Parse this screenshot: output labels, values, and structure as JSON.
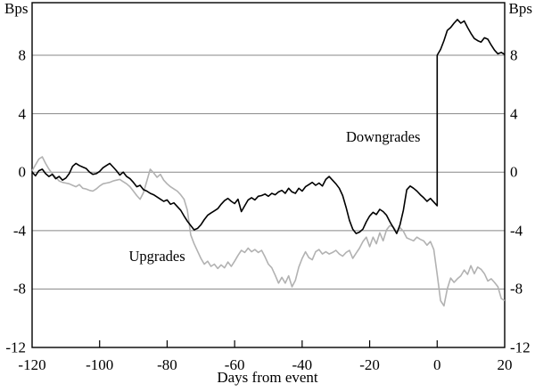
{
  "chart_data": {
    "type": "line",
    "title": "",
    "xlabel": "Days from event",
    "y_unit": "Bps",
    "xlim": [
      -120,
      20
    ],
    "ylim": [
      -12,
      11.6
    ],
    "x_ticks": [
      -120,
      -100,
      -80,
      -60,
      -40,
      -20,
      0,
      20
    ],
    "y_ticks": [
      8,
      4,
      0,
      -4,
      -8,
      -12
    ],
    "grid": "horizontal-gridlines, black outer frame, inward x ticks",
    "legend_position": "inline-annotations",
    "annotations": [
      {
        "text": "Downgrades",
        "x": -16,
        "y": 2.4
      },
      {
        "text": "Upgrades",
        "x": -83,
        "y": -5.8
      }
    ],
    "frame_color": "#000000",
    "gridline_color": "#878787",
    "series": [
      {
        "name": "Upgrades",
        "color": "#b2b2b2",
        "points": [
          [
            -120,
            0.1
          ],
          [
            -119,
            0.5
          ],
          [
            -118,
            0.9
          ],
          [
            -117,
            1.05
          ],
          [
            -116,
            0.6
          ],
          [
            -115,
            0.2
          ],
          [
            -114,
            -0.1
          ],
          [
            -113,
            -0.35
          ],
          [
            -112,
            -0.6
          ],
          [
            -111,
            -0.7
          ],
          [
            -110,
            -0.75
          ],
          [
            -109,
            -0.8
          ],
          [
            -108,
            -0.9
          ],
          [
            -107,
            -1.0
          ],
          [
            -106,
            -0.85
          ],
          [
            -105,
            -1.1
          ],
          [
            -104,
            -1.15
          ],
          [
            -103,
            -1.25
          ],
          [
            -102,
            -1.3
          ],
          [
            -101,
            -1.15
          ],
          [
            -100,
            -0.95
          ],
          [
            -99,
            -0.8
          ],
          [
            -98,
            -0.75
          ],
          [
            -97,
            -0.7
          ],
          [
            -96,
            -0.6
          ],
          [
            -95,
            -0.55
          ],
          [
            -94,
            -0.5
          ],
          [
            -93,
            -0.65
          ],
          [
            -92,
            -0.8
          ],
          [
            -91,
            -1.0
          ],
          [
            -90,
            -1.3
          ],
          [
            -89,
            -1.6
          ],
          [
            -88,
            -1.85
          ],
          [
            -87,
            -1.4
          ],
          [
            -86,
            -0.6
          ],
          [
            -85,
            0.2
          ],
          [
            -84,
            -0.05
          ],
          [
            -83,
            -0.35
          ],
          [
            -82,
            -0.15
          ],
          [
            -81,
            -0.55
          ],
          [
            -80,
            -0.8
          ],
          [
            -79,
            -1.0
          ],
          [
            -78,
            -1.15
          ],
          [
            -77,
            -1.3
          ],
          [
            -76,
            -1.55
          ],
          [
            -75,
            -1.85
          ],
          [
            -74,
            -2.6
          ],
          [
            -73,
            -4.3
          ],
          [
            -72,
            -4.9
          ],
          [
            -71,
            -5.4
          ],
          [
            -70,
            -5.9
          ],
          [
            -69,
            -6.3
          ],
          [
            -68,
            -6.1
          ],
          [
            -67,
            -6.45
          ],
          [
            -66,
            -6.3
          ],
          [
            -65,
            -6.6
          ],
          [
            -64,
            -6.35
          ],
          [
            -63,
            -6.55
          ],
          [
            -62,
            -6.15
          ],
          [
            -61,
            -6.45
          ],
          [
            -60,
            -6.1
          ],
          [
            -59,
            -5.7
          ],
          [
            -58,
            -5.35
          ],
          [
            -57,
            -5.5
          ],
          [
            -56,
            -5.2
          ],
          [
            -55,
            -5.45
          ],
          [
            -54,
            -5.3
          ],
          [
            -53,
            -5.5
          ],
          [
            -52,
            -5.35
          ],
          [
            -51,
            -5.8
          ],
          [
            -50,
            -6.3
          ],
          [
            -49,
            -6.55
          ],
          [
            -48,
            -7.05
          ],
          [
            -47,
            -7.6
          ],
          [
            -46,
            -7.2
          ],
          [
            -45,
            -7.6
          ],
          [
            -44,
            -7.1
          ],
          [
            -43,
            -7.85
          ],
          [
            -42,
            -7.4
          ],
          [
            -41,
            -6.5
          ],
          [
            -40,
            -5.9
          ],
          [
            -39,
            -5.45
          ],
          [
            -38,
            -5.85
          ],
          [
            -37,
            -6.0
          ],
          [
            -36,
            -5.45
          ],
          [
            -35,
            -5.3
          ],
          [
            -34,
            -5.6
          ],
          [
            -33,
            -5.45
          ],
          [
            -32,
            -5.6
          ],
          [
            -31,
            -5.5
          ],
          [
            -30,
            -5.35
          ],
          [
            -29,
            -5.6
          ],
          [
            -28,
            -5.75
          ],
          [
            -27,
            -5.5
          ],
          [
            -26,
            -5.35
          ],
          [
            -25,
            -5.9
          ],
          [
            -24,
            -5.55
          ],
          [
            -23,
            -5.2
          ],
          [
            -22,
            -4.75
          ],
          [
            -21,
            -4.45
          ],
          [
            -20,
            -5.1
          ],
          [
            -19,
            -4.45
          ],
          [
            -18,
            -4.9
          ],
          [
            -17,
            -4.15
          ],
          [
            -16,
            -4.7
          ],
          [
            -15,
            -3.95
          ],
          [
            -14,
            -3.65
          ],
          [
            -13,
            -3.75
          ],
          [
            -12,
            -4.1
          ],
          [
            -11,
            -3.8
          ],
          [
            -10,
            -4.05
          ],
          [
            -9,
            -4.5
          ],
          [
            -8,
            -4.6
          ],
          [
            -7,
            -4.7
          ],
          [
            -6,
            -4.45
          ],
          [
            -5,
            -4.6
          ],
          [
            -4,
            -4.7
          ],
          [
            -3,
            -5.0
          ],
          [
            -2,
            -4.75
          ],
          [
            -1,
            -5.3
          ],
          [
            0,
            -7.0
          ],
          [
            1,
            -8.8
          ],
          [
            2,
            -9.15
          ],
          [
            3,
            -8.0
          ],
          [
            4,
            -7.25
          ],
          [
            5,
            -7.55
          ],
          [
            6,
            -7.3
          ],
          [
            7,
            -7.1
          ],
          [
            8,
            -6.7
          ],
          [
            9,
            -7.0
          ],
          [
            10,
            -6.4
          ],
          [
            11,
            -6.95
          ],
          [
            12,
            -6.5
          ],
          [
            13,
            -6.65
          ],
          [
            14,
            -6.95
          ],
          [
            15,
            -7.45
          ],
          [
            16,
            -7.3
          ],
          [
            17,
            -7.55
          ],
          [
            18,
            -7.85
          ],
          [
            19,
            -8.65
          ],
          [
            20,
            -8.8
          ]
        ]
      },
      {
        "name": "Downgrades",
        "color": "#000000",
        "points": [
          [
            -120,
            0.0
          ],
          [
            -119,
            -0.25
          ],
          [
            -118,
            0.1
          ],
          [
            -117,
            0.2
          ],
          [
            -116,
            -0.1
          ],
          [
            -115,
            -0.3
          ],
          [
            -114,
            -0.15
          ],
          [
            -113,
            -0.45
          ],
          [
            -112,
            -0.3
          ],
          [
            -111,
            -0.55
          ],
          [
            -110,
            -0.4
          ],
          [
            -109,
            -0.1
          ],
          [
            -108,
            0.4
          ],
          [
            -107,
            0.6
          ],
          [
            -106,
            0.45
          ],
          [
            -105,
            0.35
          ],
          [
            -104,
            0.25
          ],
          [
            -103,
            0.0
          ],
          [
            -102,
            -0.15
          ],
          [
            -101,
            -0.1
          ],
          [
            -100,
            0.05
          ],
          [
            -99,
            0.3
          ],
          [
            -98,
            0.45
          ],
          [
            -97,
            0.6
          ],
          [
            -96,
            0.35
          ],
          [
            -95,
            0.1
          ],
          [
            -94,
            -0.2
          ],
          [
            -93,
            0.0
          ],
          [
            -92,
            -0.3
          ],
          [
            -91,
            -0.45
          ],
          [
            -90,
            -0.7
          ],
          [
            -89,
            -1.0
          ],
          [
            -88,
            -0.9
          ],
          [
            -87,
            -1.2
          ],
          [
            -86,
            -1.3
          ],
          [
            -85,
            -1.45
          ],
          [
            -84,
            -1.55
          ],
          [
            -83,
            -1.7
          ],
          [
            -82,
            -1.85
          ],
          [
            -81,
            -2.0
          ],
          [
            -80,
            -1.9
          ],
          [
            -79,
            -2.2
          ],
          [
            -78,
            -2.1
          ],
          [
            -77,
            -2.35
          ],
          [
            -76,
            -2.6
          ],
          [
            -75,
            -3.0
          ],
          [
            -74,
            -3.35
          ],
          [
            -73,
            -3.65
          ],
          [
            -72,
            -3.95
          ],
          [
            -71,
            -3.85
          ],
          [
            -70,
            -3.6
          ],
          [
            -69,
            -3.25
          ],
          [
            -68,
            -2.95
          ],
          [
            -67,
            -2.8
          ],
          [
            -66,
            -2.65
          ],
          [
            -65,
            -2.5
          ],
          [
            -64,
            -2.2
          ],
          [
            -63,
            -1.95
          ],
          [
            -62,
            -1.8
          ],
          [
            -61,
            -2.0
          ],
          [
            -60,
            -2.15
          ],
          [
            -59,
            -1.85
          ],
          [
            -58,
            -2.7
          ],
          [
            -57,
            -2.3
          ],
          [
            -56,
            -1.9
          ],
          [
            -55,
            -1.75
          ],
          [
            -54,
            -1.9
          ],
          [
            -53,
            -1.65
          ],
          [
            -52,
            -1.6
          ],
          [
            -51,
            -1.5
          ],
          [
            -50,
            -1.65
          ],
          [
            -49,
            -1.45
          ],
          [
            -48,
            -1.55
          ],
          [
            -47,
            -1.35
          ],
          [
            -46,
            -1.25
          ],
          [
            -45,
            -1.45
          ],
          [
            -44,
            -1.1
          ],
          [
            -43,
            -1.35
          ],
          [
            -42,
            -1.45
          ],
          [
            -41,
            -1.1
          ],
          [
            -40,
            -1.3
          ],
          [
            -39,
            -1.0
          ],
          [
            -38,
            -0.85
          ],
          [
            -37,
            -0.7
          ],
          [
            -36,
            -0.9
          ],
          [
            -35,
            -0.75
          ],
          [
            -34,
            -0.95
          ],
          [
            -33,
            -0.5
          ],
          [
            -32,
            -0.3
          ],
          [
            -31,
            -0.55
          ],
          [
            -30,
            -0.8
          ],
          [
            -29,
            -1.1
          ],
          [
            -28,
            -1.6
          ],
          [
            -27,
            -2.4
          ],
          [
            -26,
            -3.3
          ],
          [
            -25,
            -3.9
          ],
          [
            -24,
            -4.2
          ],
          [
            -23,
            -4.1
          ],
          [
            -22,
            -3.9
          ],
          [
            -21,
            -3.4
          ],
          [
            -20,
            -3.0
          ],
          [
            -19,
            -2.75
          ],
          [
            -18,
            -2.9
          ],
          [
            -17,
            -2.55
          ],
          [
            -16,
            -2.7
          ],
          [
            -15,
            -2.95
          ],
          [
            -14,
            -3.4
          ],
          [
            -13,
            -3.8
          ],
          [
            -12,
            -4.2
          ],
          [
            -11,
            -3.6
          ],
          [
            -10,
            -2.6
          ],
          [
            -9,
            -1.2
          ],
          [
            -8,
            -0.95
          ],
          [
            -7,
            -1.1
          ],
          [
            -6,
            -1.3
          ],
          [
            -5,
            -1.55
          ],
          [
            -4,
            -1.75
          ],
          [
            -3,
            -2.0
          ],
          [
            -2,
            -1.8
          ],
          [
            -1,
            -2.05
          ],
          [
            0,
            -2.3
          ],
          [
            0,
            8.0
          ],
          [
            1,
            8.4
          ],
          [
            2,
            9.0
          ],
          [
            3,
            9.7
          ],
          [
            4,
            9.9
          ],
          [
            5,
            10.2
          ],
          [
            6,
            10.45
          ],
          [
            7,
            10.2
          ],
          [
            8,
            10.35
          ],
          [
            9,
            9.9
          ],
          [
            10,
            9.5
          ],
          [
            11,
            9.15
          ],
          [
            12,
            9.0
          ],
          [
            13,
            8.9
          ],
          [
            14,
            9.2
          ],
          [
            15,
            9.1
          ],
          [
            16,
            8.7
          ],
          [
            17,
            8.35
          ],
          [
            18,
            8.1
          ],
          [
            19,
            8.2
          ],
          [
            20,
            8.05
          ]
        ]
      }
    ]
  }
}
